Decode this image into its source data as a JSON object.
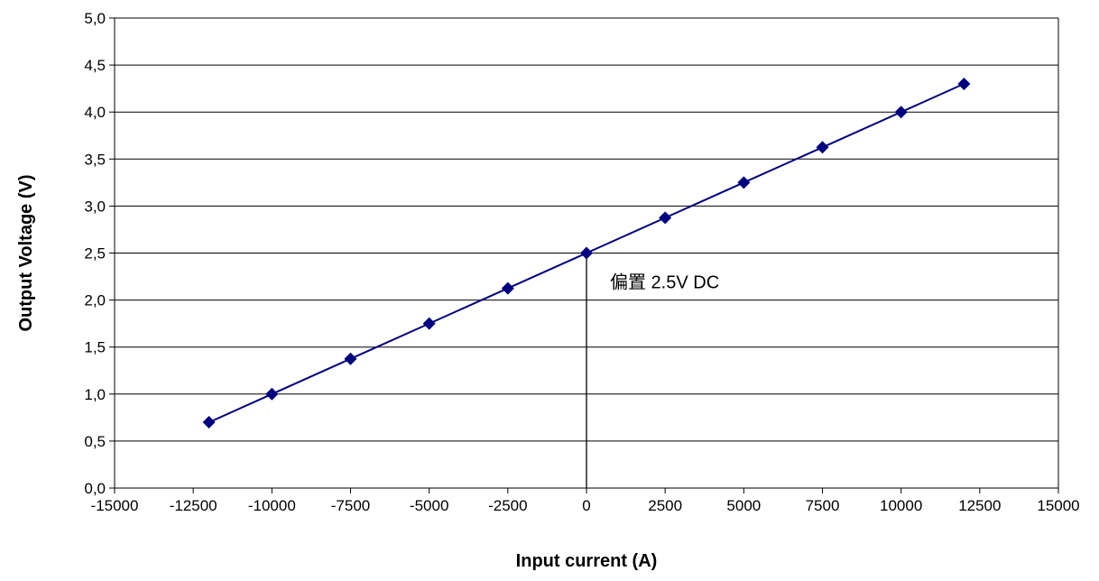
{
  "chart_data": {
    "type": "line",
    "title": "",
    "xlabel": "Input current (A)",
    "ylabel": "Output Voltage (V)",
    "xlim": [
      -15000,
      15000
    ],
    "ylim": [
      0,
      5
    ],
    "x_ticks": [
      "-15000",
      "-12500",
      "-10000",
      "-7500",
      "-5000",
      "-2500",
      "0",
      "2500",
      "5000",
      "7500",
      "10000",
      "12500",
      "15000"
    ],
    "y_ticks": [
      "0,0",
      "0,5",
      "1,0",
      "1,5",
      "2,0",
      "2,5",
      "3,0",
      "3,5",
      "4,0",
      "4,5",
      "5,0"
    ],
    "grid": "horizontal",
    "series": [
      {
        "color": "#000080",
        "marker": "diamond",
        "x": [
          -12000,
          -10000,
          -7500,
          -5000,
          -2500,
          0,
          2500,
          5000,
          7500,
          10000,
          12000
        ],
        "y": [
          0.7,
          1.0,
          1.375,
          1.75,
          2.125,
          2.5,
          2.875,
          3.25,
          3.625,
          4.0,
          4.3
        ]
      }
    ],
    "annotation": {
      "text": "偏置 2.5V DC",
      "x": 0,
      "y": 2.5
    }
  }
}
